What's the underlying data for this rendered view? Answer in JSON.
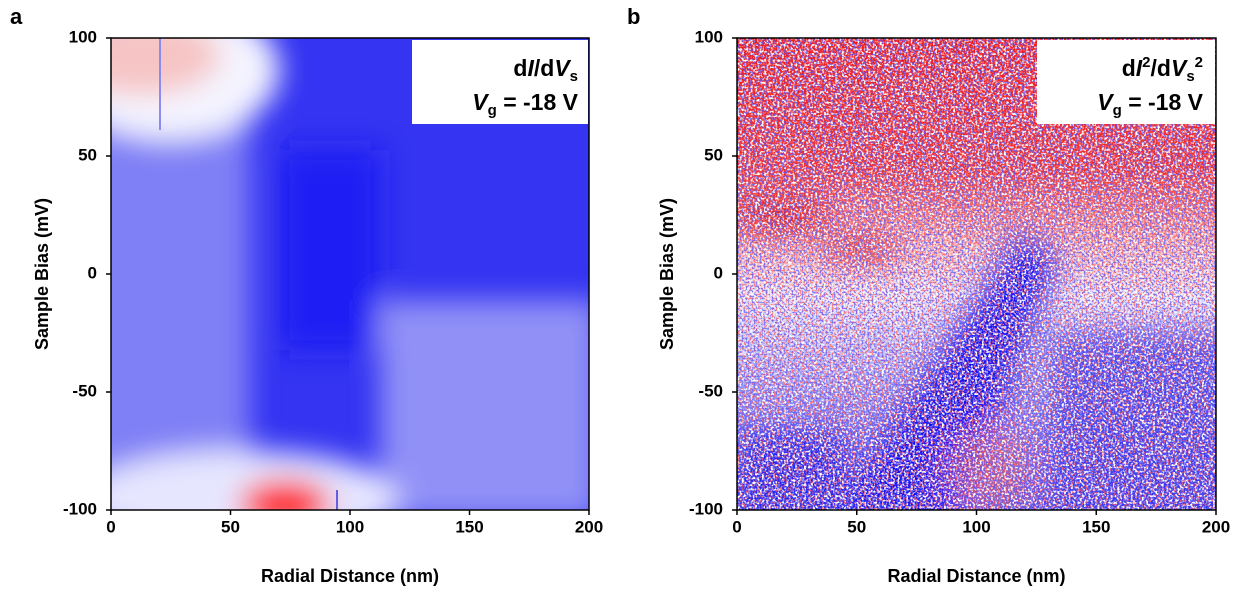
{
  "chart_data": [
    {
      "type": "heatmap",
      "panel": "a",
      "annotation": [
        [
          "d",
          "I",
          "/d",
          "V",
          "s"
        ],
        [
          "V",
          "g",
          " = -18 V"
        ]
      ],
      "xlabel": "Radial Distance (nm)",
      "ylabel": "Sample Bias (mV)",
      "xlim": [
        0,
        200
      ],
      "ylim": [
        -100,
        100
      ],
      "xticks": [
        0,
        50,
        100,
        150,
        200
      ],
      "yticks": [
        -100,
        -50,
        0,
        50,
        100
      ]
    },
    {
      "type": "heatmap",
      "panel": "b",
      "annotation": [
        [
          "d",
          "I",
          "2",
          "/d",
          "V",
          "s",
          "2"
        ],
        [
          "V",
          "g",
          " = -18 V"
        ]
      ],
      "xlabel": "Radial Distance (nm)",
      "ylabel": "Sample Bias (mV)",
      "xlim": [
        0,
        200
      ],
      "ylim": [
        -100,
        100
      ],
      "xticks": [
        0,
        50,
        100,
        150,
        200
      ],
      "yticks": [
        -100,
        -50,
        0,
        50,
        100
      ]
    }
  ]
}
